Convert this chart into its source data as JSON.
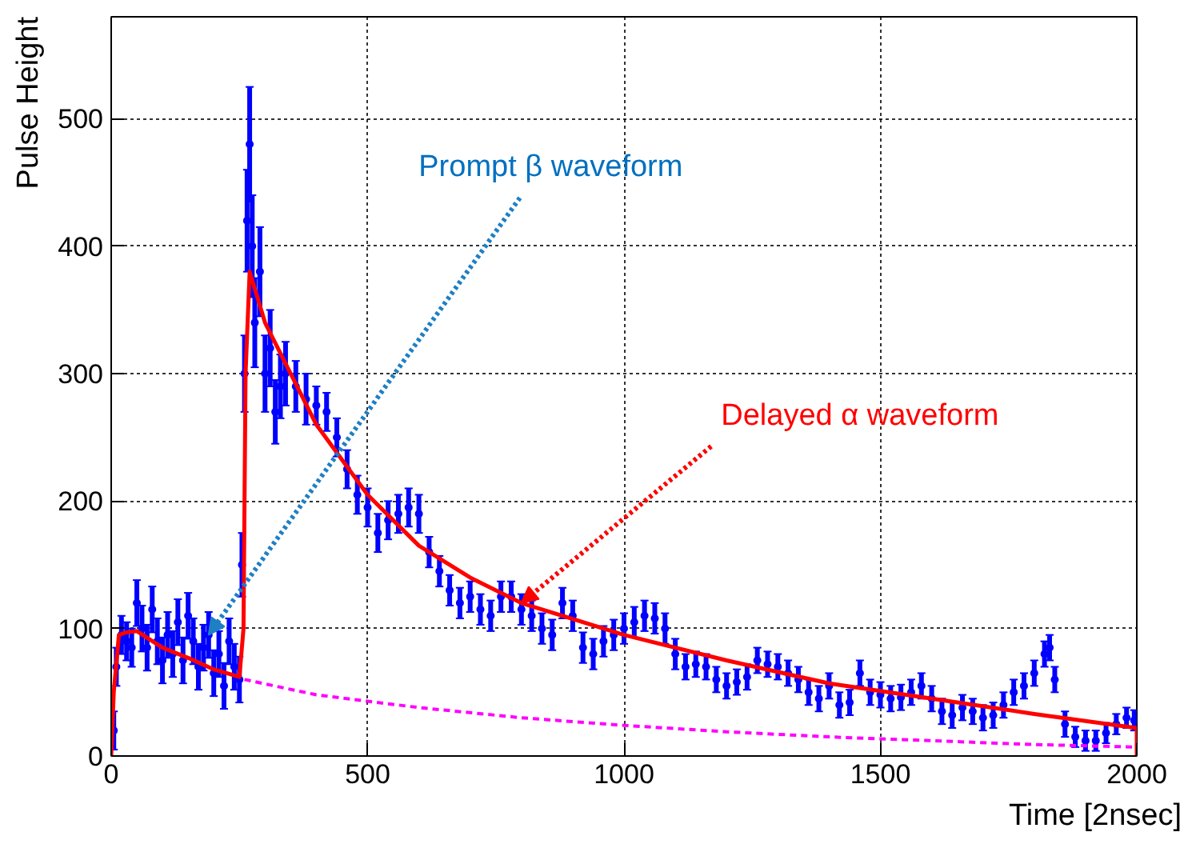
{
  "chart_data": {
    "type": "scatter",
    "xlabel": "Time [2nsec]",
    "ylabel": "Pulse Height",
    "xlim": [
      0,
      2000
    ],
    "ylim": [
      0,
      580
    ],
    "xticks": [
      0,
      500,
      1000,
      1500,
      2000
    ],
    "yticks": [
      0,
      100,
      200,
      300,
      400,
      500
    ],
    "grid": true,
    "annotations": [
      {
        "text": "Prompt β waveform",
        "x": 190,
        "y": 95
      },
      {
        "text": "Delayed α waveform",
        "x": 800,
        "y": 120
      }
    ],
    "series": [
      {
        "color": "#0000ff",
        "marker": "circle",
        "x": [
          5,
          10,
          20,
          30,
          40,
          50,
          60,
          70,
          80,
          90,
          100,
          110,
          120,
          130,
          140,
          150,
          160,
          170,
          180,
          190,
          200,
          210,
          220,
          230,
          240,
          250,
          255,
          260,
          265,
          270,
          275,
          280,
          290,
          300,
          310,
          320,
          330,
          340,
          360,
          380,
          400,
          420,
          440,
          460,
          480,
          500,
          520,
          540,
          560,
          580,
          600,
          620,
          640,
          660,
          680,
          700,
          720,
          740,
          760,
          780,
          800,
          820,
          840,
          860,
          880,
          900,
          920,
          940,
          960,
          980,
          1000,
          1020,
          1040,
          1060,
          1080,
          1100,
          1120,
          1140,
          1160,
          1180,
          1200,
          1220,
          1240,
          1260,
          1280,
          1300,
          1320,
          1340,
          1360,
          1380,
          1400,
          1420,
          1440,
          1460,
          1480,
          1500,
          1520,
          1540,
          1560,
          1580,
          1600,
          1620,
          1640,
          1660,
          1680,
          1700,
          1720,
          1740,
          1760,
          1780,
          1800,
          1820,
          1830,
          1840,
          1860,
          1880,
          1900,
          1920,
          1940,
          1960,
          1980,
          1995
        ],
        "values": [
          20,
          70,
          95,
          90,
          85,
          120,
          100,
          85,
          115,
          90,
          75,
          95,
          80,
          105,
          75,
          110,
          90,
          70,
          85,
          95,
          65,
          80,
          55,
          90,
          70,
          60,
          150,
          300,
          420,
          480,
          400,
          340,
          380,
          300,
          320,
          270,
          290,
          300,
          290,
          280,
          275,
          270,
          250,
          225,
          205,
          195,
          175,
          185,
          190,
          195,
          190,
          160,
          145,
          130,
          120,
          125,
          115,
          110,
          125,
          125,
          115,
          110,
          100,
          95,
          120,
          110,
          85,
          80,
          90,
          95,
          100,
          105,
          110,
          108,
          100,
          80,
          70,
          72,
          70,
          60,
          55,
          58,
          62,
          75,
          72,
          70,
          65,
          60,
          50,
          45,
          55,
          40,
          42,
          65,
          50,
          48,
          45,
          46,
          50,
          55,
          45,
          35,
          32,
          38,
          35,
          30,
          32,
          40,
          50,
          55,
          65,
          80,
          85,
          60,
          25,
          15,
          12,
          12,
          18,
          25,
          30,
          28
        ],
        "errors": [
          15,
          15,
          15,
          15,
          15,
          18,
          18,
          18,
          18,
          18,
          18,
          18,
          18,
          18,
          18,
          18,
          18,
          18,
          18,
          18,
          18,
          18,
          18,
          18,
          18,
          18,
          25,
          30,
          40,
          45,
          40,
          35,
          35,
          30,
          30,
          25,
          25,
          25,
          20,
          20,
          15,
          15,
          15,
          15,
          15,
          15,
          15,
          15,
          15,
          15,
          15,
          12,
          12,
          12,
          12,
          12,
          12,
          12,
          12,
          12,
          12,
          12,
          12,
          12,
          12,
          12,
          12,
          12,
          12,
          12,
          12,
          12,
          12,
          12,
          12,
          12,
          10,
          10,
          10,
          10,
          10,
          10,
          10,
          10,
          10,
          10,
          10,
          10,
          10,
          10,
          10,
          10,
          10,
          10,
          10,
          10,
          10,
          10,
          10,
          10,
          10,
          10,
          10,
          10,
          10,
          10,
          10,
          10,
          10,
          10,
          10,
          10,
          10,
          10,
          10,
          8,
          8,
          8,
          8,
          8,
          8,
          8
        ]
      },
      {
        "type": "line",
        "color": "#ff0000",
        "line_style": "solid",
        "x": [
          0,
          5,
          15,
          30,
          50,
          100,
          150,
          200,
          250,
          258,
          262,
          270,
          300,
          350,
          400,
          500,
          600,
          700,
          800,
          1000,
          1200,
          1400,
          1600,
          1800,
          2000,
          2000
        ],
        "values": [
          0,
          50,
          95,
          97,
          98,
          85,
          77,
          68,
          62,
          100,
          300,
          380,
          340,
          300,
          260,
          205,
          165,
          140,
          120,
          95,
          75,
          57,
          45,
          33,
          22,
          0
        ]
      },
      {
        "type": "line",
        "color": "#ff00ff",
        "line_style": "dashed",
        "x": [
          260,
          400,
          600,
          800,
          1000,
          1200,
          1400,
          1600,
          1800,
          2000
        ],
        "values": [
          60,
          48,
          38,
          30,
          24,
          19,
          15,
          12,
          9,
          7
        ]
      }
    ]
  }
}
